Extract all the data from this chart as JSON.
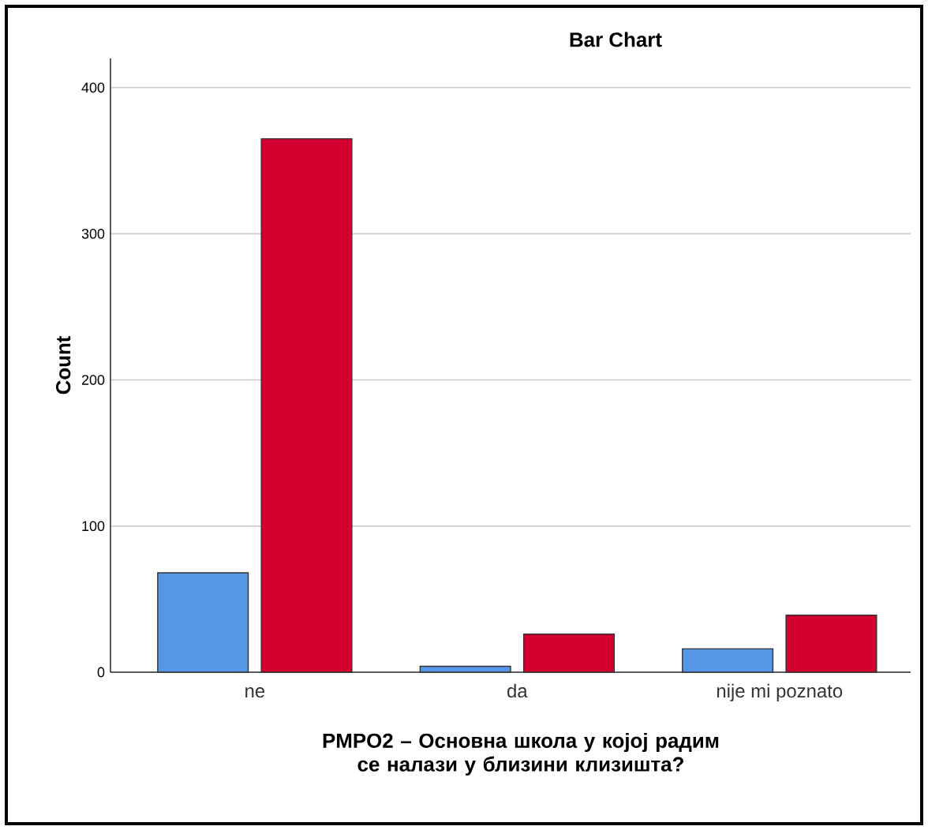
{
  "chart_data": {
    "type": "bar",
    "title": "Bar Chart",
    "xlabel": "PMPO2 – Основна школа у којој радим се налази у близини клизишта?",
    "ylabel": "Count",
    "categories": [
      "ne",
      "da",
      "nije mi poznato"
    ],
    "series": [
      {
        "color": "#5596e6",
        "values": [
          68,
          4,
          16
        ]
      },
      {
        "color": "#d40030",
        "values": [
          365,
          26,
          39
        ]
      }
    ],
    "ylim": [
      0,
      420
    ],
    "yticks": [
      0,
      100,
      200,
      300,
      400
    ],
    "grid": "y"
  }
}
